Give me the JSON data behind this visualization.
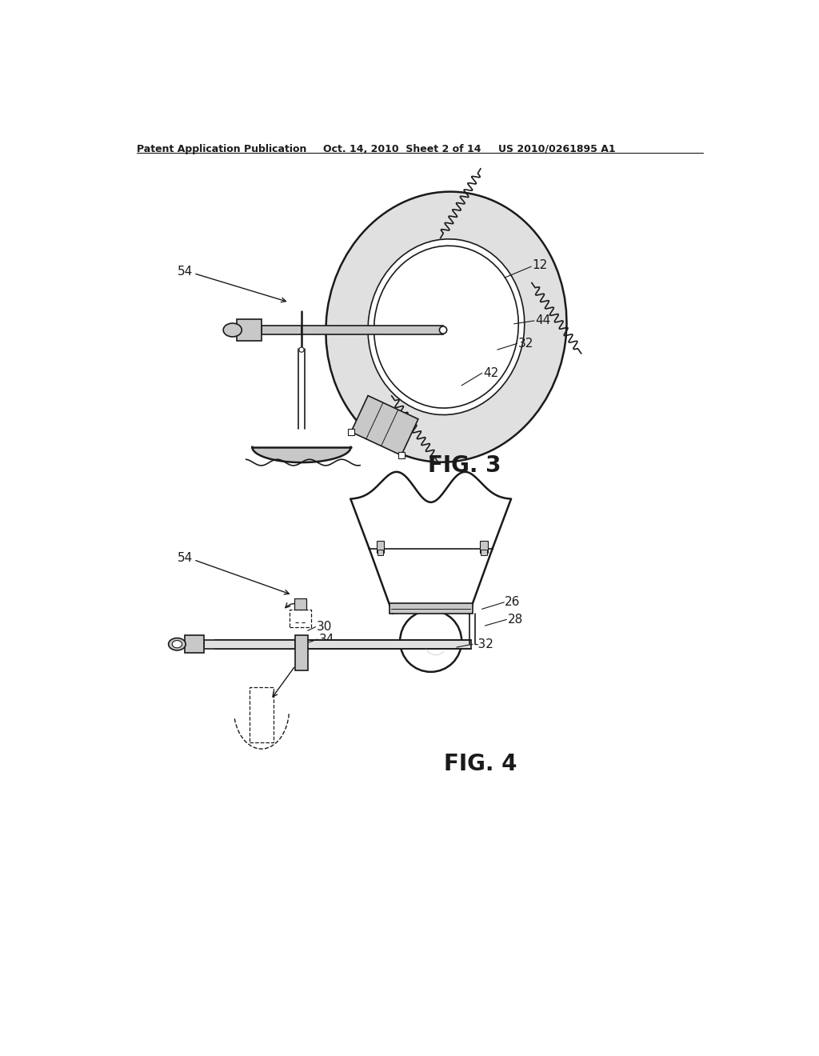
{
  "bg_color": "#ffffff",
  "line_color": "#1a1a1a",
  "gray_light": "#e0e0e0",
  "gray_mid": "#c8c8c8",
  "gray_dark": "#a8a8a8",
  "header_left": "Patent Application Publication",
  "header_mid": "Oct. 14, 2010  Sheet 2 of 14",
  "header_right": "US 2010/0261895 A1",
  "fig3_label": "FIG. 3",
  "fig4_label": "FIG. 4"
}
